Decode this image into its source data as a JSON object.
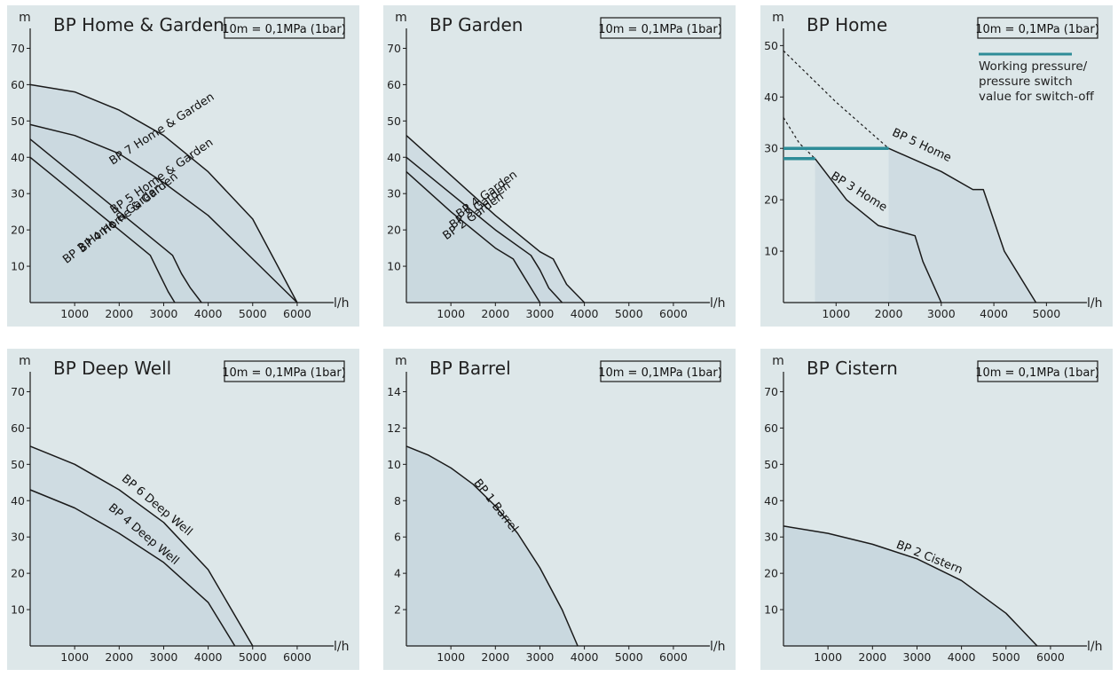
{
  "chart_data": [
    {
      "type": "line",
      "title": "BP Home & Garden",
      "xlabel": "l/h",
      "ylabel": "m",
      "note": "10m = 0,1MPa (1bar)",
      "xlim": [
        0,
        6500
      ],
      "ylim": [
        0,
        75
      ],
      "xticks": [
        "1000",
        "2000",
        "3000",
        "4000",
        "5000",
        "6000"
      ],
      "yticks": [
        "10",
        "20",
        "30",
        "40",
        "50",
        "60",
        "70"
      ],
      "series": [
        {
          "name": "BP 7 Home & Garden",
          "label_at": [
            3000,
            47,
            -33
          ],
          "x": [
            0,
            1000,
            2000,
            3000,
            4000,
            5000,
            6000
          ],
          "y": [
            60,
            58,
            53,
            46,
            36,
            23,
            0
          ]
        },
        {
          "name": "BP 5 Home & Garden",
          "label_at": [
            3000,
            34,
            -35
          ],
          "x": [
            0,
            1000,
            2000,
            3000,
            4000,
            5000,
            6000
          ],
          "y": [
            49,
            46,
            41,
            33,
            24,
            12,
            0
          ]
        },
        {
          "name": "BP 4 Home & Garden",
          "label_at": [
            2250,
            24,
            -38
          ],
          "x": [
            0,
            500,
            1000,
            1500,
            2000,
            2500,
            3000,
            3200,
            3400,
            3600,
            3850
          ],
          "y": [
            45,
            40,
            35,
            30,
            25,
            20,
            15,
            13,
            8,
            4,
            0
          ]
        },
        {
          "name": "BP 3 Home & Garden",
          "label_at": [
            1900,
            21,
            -38
          ],
          "x": [
            0,
            500,
            1000,
            1500,
            2000,
            2500,
            2700,
            2900,
            3100,
            3250
          ],
          "y": [
            40,
            35,
            30,
            25,
            20,
            15,
            13,
            8,
            3,
            0
          ]
        }
      ]
    },
    {
      "type": "line",
      "title": "BP Garden",
      "xlabel": "l/h",
      "ylabel": "m",
      "note": "10m = 0,1MPa (1bar)",
      "xlim": [
        0,
        6500
      ],
      "ylim": [
        0,
        75
      ],
      "xticks": [
        "1000",
        "2000",
        "3000",
        "4000",
        "5000",
        "6000"
      ],
      "yticks": [
        "10",
        "20",
        "30",
        "40",
        "50",
        "60",
        "70"
      ],
      "series": [
        {
          "name": "BP 4 Garden",
          "label_at": [
            1850,
            29,
            -36
          ],
          "x": [
            0,
            1000,
            2000,
            3000,
            3300,
            3600,
            4000
          ],
          "y": [
            46,
            35,
            24,
            14,
            12,
            5,
            0
          ]
        },
        {
          "name": "BP 3 Garden",
          "label_at": [
            1700,
            26,
            -36
          ],
          "x": [
            0,
            1000,
            2000,
            2800,
            3000,
            3200,
            3500
          ],
          "y": [
            40,
            30,
            20,
            13,
            9,
            4,
            0
          ]
        },
        {
          "name": "BP 2 Garden",
          "label_at": [
            1550,
            23,
            -36
          ],
          "x": [
            0,
            1000,
            2000,
            2400,
            2600,
            2800,
            3000
          ],
          "y": [
            36,
            25,
            15,
            12,
            8,
            4,
            0
          ]
        }
      ]
    },
    {
      "type": "line",
      "title": "BP Home",
      "xlabel": "l/h",
      "ylabel": "m",
      "note": "10m = 0,1MPa (1bar)",
      "xlim": [
        0,
        5500
      ],
      "ylim": [
        0,
        53
      ],
      "xticks": [
        "1000",
        "2000",
        "3000",
        "4000",
        "5000"
      ],
      "yticks": [
        "10",
        "20",
        "30",
        "40",
        "50"
      ],
      "legend": {
        "label_lines": [
          "Working pressure/",
          "pressure switch",
          "value for switch-off"
        ],
        "color": "#2e8c98",
        "position": "top-right"
      },
      "series": [
        {
          "name": "BP 5 Home",
          "label_at": [
            2600,
            30,
            25
          ],
          "x": [
            2000,
            3000,
            3600,
            3800,
            4200,
            4800
          ],
          "y": [
            30,
            25.5,
            22,
            22,
            10,
            0
          ]
        },
        {
          "name": "BP 3 Home",
          "label_at": [
            1400,
            21,
            32
          ],
          "x": [
            600,
            1200,
            1800,
            2500,
            2650,
            3000
          ],
          "y": [
            28,
            20,
            15,
            13,
            8,
            0
          ]
        }
      ],
      "dashed_series": [
        {
          "x": [
            0,
            500,
            1000,
            1500,
            2000
          ],
          "y": [
            49,
            44,
            39,
            34.5,
            30
          ]
        },
        {
          "x": [
            0,
            300,
            600
          ],
          "y": [
            36,
            31,
            28
          ]
        }
      ],
      "switch_off_lines": [
        {
          "x": [
            0,
            2000
          ],
          "y": 30
        },
        {
          "x": [
            0,
            600
          ],
          "y": 28
        }
      ]
    },
    {
      "type": "line",
      "title": "BP Deep Well",
      "xlabel": "l/h",
      "ylabel": "m",
      "note": "10m = 0,1MPa (1bar)",
      "xlim": [
        0,
        6500
      ],
      "ylim": [
        0,
        75
      ],
      "xticks": [
        "1000",
        "2000",
        "3000",
        "4000",
        "5000",
        "6000"
      ],
      "yticks": [
        "10",
        "20",
        "30",
        "40",
        "50",
        "60",
        "70"
      ],
      "series": [
        {
          "name": "BP 6 Deep Well",
          "label_at": [
            2800,
            38,
            40
          ],
          "x": [
            0,
            1000,
            2000,
            3000,
            4000,
            5000
          ],
          "y": [
            55,
            50,
            43,
            34,
            21,
            0
          ]
        },
        {
          "name": "BP 4 Deep Well",
          "label_at": [
            2500,
            30,
            40
          ],
          "x": [
            0,
            1000,
            2000,
            3000,
            4000,
            4600
          ],
          "y": [
            43,
            38,
            31,
            23,
            12,
            0
          ]
        }
      ]
    },
    {
      "type": "line",
      "title": "BP Barrel",
      "xlabel": "l/h",
      "ylabel": "m",
      "note": "10m = 0,1MPa (1bar)",
      "xlim": [
        0,
        6500
      ],
      "ylim": [
        0,
        15
      ],
      "xticks": [
        "1000",
        "2000",
        "3000",
        "4000",
        "5000",
        "6000"
      ],
      "yticks": [
        "2",
        "4",
        "6",
        "8",
        "10",
        "12",
        "14"
      ],
      "series": [
        {
          "name": "BP 1 Barrel",
          "label_at": [
            1950,
            7.6,
            52
          ],
          "x": [
            0,
            500,
            1000,
            1500,
            2000,
            2500,
            3000,
            3500,
            3850
          ],
          "y": [
            11,
            10.5,
            9.8,
            8.9,
            7.7,
            6.2,
            4.3,
            2,
            0
          ]
        }
      ]
    },
    {
      "type": "line",
      "title": "BP Cistern",
      "xlabel": "l/h",
      "ylabel": "m",
      "note": "10m = 0,1MPa (1bar)",
      "xlim": [
        0,
        6500
      ],
      "ylim": [
        0,
        75
      ],
      "xticks": [
        "1000",
        "2000",
        "3000",
        "4000",
        "5000",
        "6000"
      ],
      "yticks": [
        "10",
        "20",
        "30",
        "40",
        "50",
        "60",
        "70"
      ],
      "series": [
        {
          "name": "BP 2 Cistern",
          "label_at": [
            3250,
            23.5,
            22
          ],
          "x": [
            0,
            1000,
            2000,
            3000,
            4000,
            5000,
            5700
          ],
          "y": [
            33,
            31,
            28,
            24,
            18,
            9,
            0
          ]
        }
      ]
    }
  ]
}
